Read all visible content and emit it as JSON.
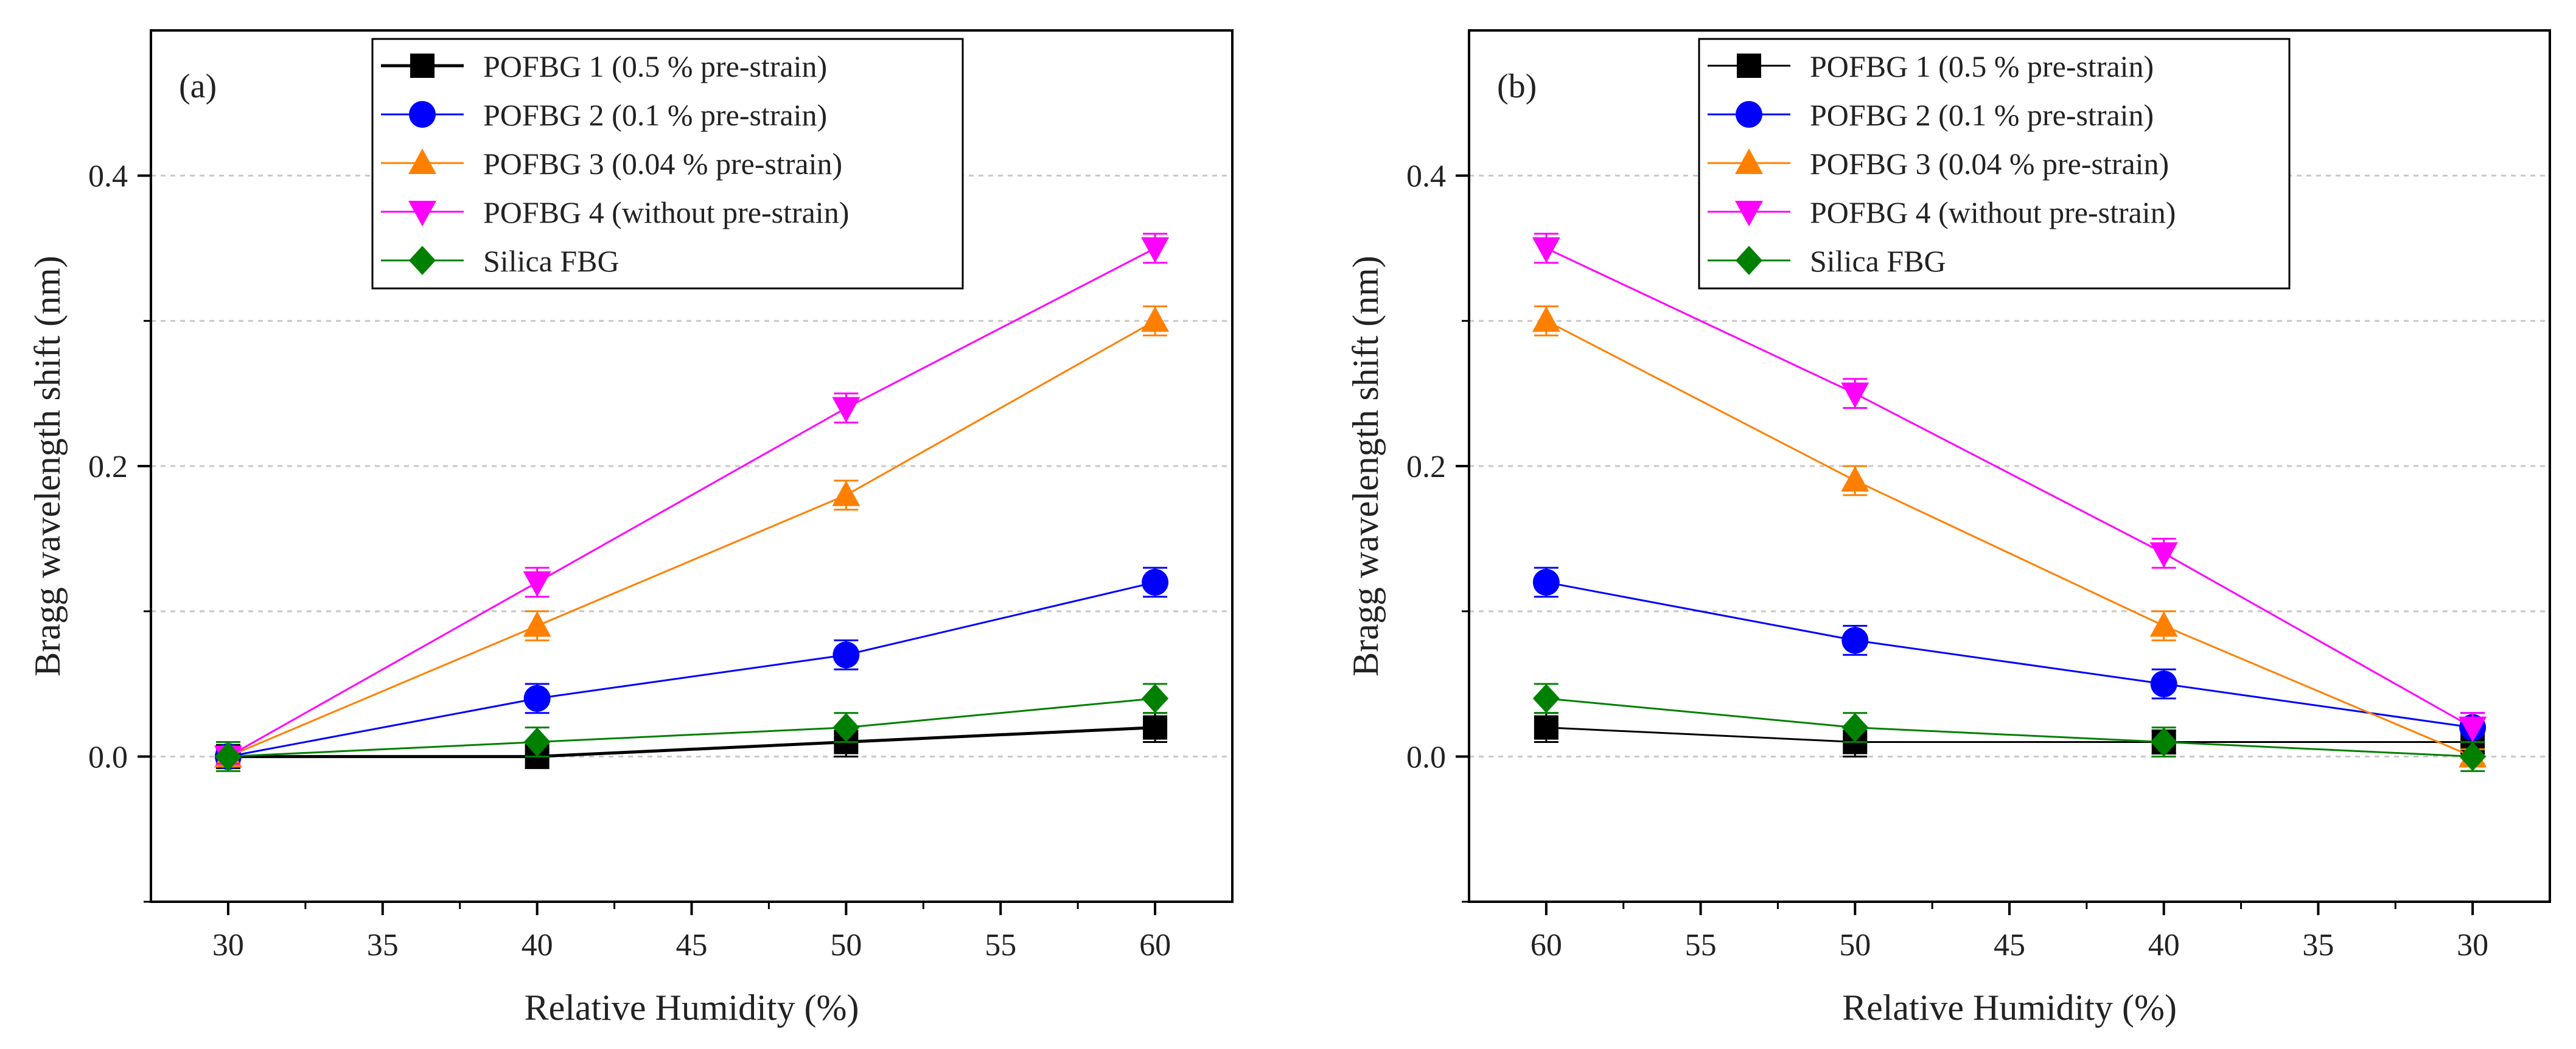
{
  "chart_data": [
    {
      "type": "line",
      "panel_label": "(a)",
      "xlabel": "Relative Humidity (%)",
      "ylabel": "Bragg wavelength shift (nm)",
      "xlim": [
        27.5,
        62.5
      ],
      "ylim": [
        -0.1,
        0.5
      ],
      "x_reversed": false,
      "xticks": [
        30,
        35,
        40,
        45,
        50,
        55,
        60
      ],
      "yticks": [
        0.0,
        0.2,
        0.4
      ],
      "grid_y": [
        0.0,
        0.1,
        0.2,
        0.3,
        0.4
      ],
      "grid": true,
      "legend_position": "top-center",
      "x": [
        30,
        40,
        50,
        60
      ],
      "series": [
        {
          "name": "POFBG 1 (0.5 % pre-strain)",
          "marker": "square",
          "color": "#000000",
          "values": [
            0.0,
            0.0,
            0.01,
            0.02
          ],
          "error": [
            0.008,
            0.008,
            0.01,
            0.01
          ]
        },
        {
          "name": "POFBG 2 (0.1 % pre-strain)",
          "marker": "circle",
          "color": "#0000ff",
          "values": [
            0.0,
            0.04,
            0.07,
            0.12
          ],
          "error": [
            0.005,
            0.01,
            0.01,
            0.01
          ]
        },
        {
          "name": "POFBG 3 (0.04 % pre-strain)",
          "marker": "triangle-up",
          "color": "#ff8000",
          "values": [
            0.0,
            0.09,
            0.18,
            0.3
          ],
          "error": [
            0.005,
            0.01,
            0.01,
            0.01
          ]
        },
        {
          "name": "POFBG 4 (without pre-strain)",
          "marker": "triangle-down",
          "color": "#ff00ff",
          "values": [
            0.0,
            0.12,
            0.24,
            0.35
          ],
          "error": [
            0.005,
            0.01,
            0.01,
            0.01
          ]
        },
        {
          "name": "Silica FBG",
          "marker": "diamond",
          "color": "#008000",
          "values": [
            0.0,
            0.01,
            0.02,
            0.04
          ],
          "error": [
            0.01,
            0.01,
            0.01,
            0.01
          ]
        }
      ]
    },
    {
      "type": "line",
      "panel_label": "(b)",
      "xlabel": "Relative Humidity (%)",
      "ylabel": "Bragg wavelength shift (nm)",
      "xlim": [
        62.5,
        27.5
      ],
      "ylim": [
        -0.1,
        0.5
      ],
      "x_reversed": true,
      "xticks": [
        60,
        55,
        50,
        45,
        40,
        35,
        30
      ],
      "yticks": [
        0.0,
        0.2,
        0.4
      ],
      "grid_y": [
        0.0,
        0.1,
        0.2,
        0.3,
        0.4
      ],
      "grid": true,
      "legend_position": "top-center",
      "x": [
        60,
        50,
        40,
        30
      ],
      "series": [
        {
          "name": "POFBG 1 (0.5 % pre-strain)",
          "marker": "square",
          "color": "#000000",
          "values": [
            0.02,
            0.01,
            0.01,
            0.01
          ],
          "error": [
            0.01,
            0.01,
            0.008,
            0.008
          ]
        },
        {
          "name": "POFBG 2 (0.1 % pre-strain)",
          "marker": "circle",
          "color": "#0000ff",
          "values": [
            0.12,
            0.08,
            0.05,
            0.02
          ],
          "error": [
            0.01,
            0.01,
            0.01,
            0.01
          ]
        },
        {
          "name": "POFBG 3 (0.04 % pre-strain)",
          "marker": "triangle-up",
          "color": "#ff8000",
          "values": [
            0.3,
            0.19,
            0.09,
            0.0
          ],
          "error": [
            0.01,
            0.01,
            0.01,
            0.005
          ]
        },
        {
          "name": "POFBG 4 (without pre-strain)",
          "marker": "triangle-down",
          "color": "#ff00ff",
          "values": [
            0.35,
            0.25,
            0.14,
            0.02
          ],
          "error": [
            0.01,
            0.01,
            0.01,
            0.01
          ]
        },
        {
          "name": "Silica FBG",
          "marker": "diamond",
          "color": "#008000",
          "values": [
            0.04,
            0.02,
            0.01,
            0.0
          ],
          "error": [
            0.01,
            0.01,
            0.01,
            0.01
          ]
        }
      ]
    }
  ]
}
